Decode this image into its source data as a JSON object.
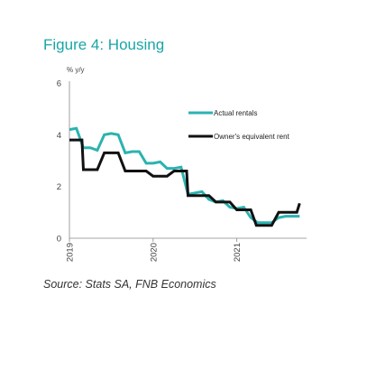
{
  "figure": {
    "title": "Figure 4: Housing",
    "source": "Source:  Stats SA, FNB Economics"
  },
  "chart_data": {
    "type": "line",
    "ylabel": "% y/y",
    "ylim": [
      0,
      6
    ],
    "yticks": [
      0,
      2,
      4,
      6
    ],
    "xlim": [
      0,
      34
    ],
    "xticks": [
      {
        "label": "2019",
        "x": 0
      },
      {
        "label": "2020",
        "x": 12
      },
      {
        "label": "2021",
        "x": 24
      }
    ],
    "grid": false,
    "legend": "upper-right",
    "colors": {
      "actual": "#2bb3b0",
      "owners": "#111111"
    },
    "series": [
      {
        "name": "Actual rentals",
        "color": "#2bb3b0",
        "x": [
          0,
          1,
          2,
          3,
          4,
          5,
          6,
          7,
          8,
          9,
          10,
          11,
          12,
          13,
          14,
          15,
          16,
          17,
          18,
          19,
          20,
          21,
          22,
          23,
          24,
          25,
          26,
          27,
          28,
          29,
          30,
          31,
          32,
          33
        ],
        "values": [
          4.2,
          4.25,
          3.5,
          3.5,
          3.4,
          4.0,
          4.05,
          4.0,
          3.3,
          3.35,
          3.35,
          2.9,
          2.9,
          2.95,
          2.7,
          2.7,
          2.75,
          1.7,
          1.75,
          1.8,
          1.5,
          1.4,
          1.45,
          1.2,
          1.15,
          1.2,
          0.8,
          0.6,
          0.6,
          0.6,
          0.8,
          0.85,
          0.85,
          0.85
        ]
      },
      {
        "name": "Owner's equivalent rent",
        "color": "#111111",
        "x": [
          0,
          1,
          1.8,
          2,
          3,
          3.6,
          4,
          5,
          6,
          6.8,
          7,
          8,
          9,
          10,
          10.8,
          11,
          12,
          13,
          13.8,
          14,
          15,
          16,
          16.8,
          17,
          18,
          18.8,
          19,
          20,
          21,
          21.8,
          22,
          23,
          24,
          24.8,
          25,
          26,
          26.8,
          27,
          28,
          28.8,
          29,
          30,
          31,
          31.8,
          32,
          32.6,
          33
        ],
        "values": [
          3.8,
          3.8,
          3.8,
          2.65,
          2.65,
          2.65,
          2.65,
          3.3,
          3.3,
          3.3,
          3.3,
          2.6,
          2.6,
          2.6,
          2.6,
          2.6,
          2.4,
          2.4,
          2.4,
          2.4,
          2.6,
          2.6,
          2.6,
          1.65,
          1.65,
          1.65,
          1.65,
          1.65,
          1.4,
          1.4,
          1.4,
          1.4,
          1.1,
          1.1,
          1.1,
          1.1,
          0.5,
          0.5,
          0.5,
          0.5,
          0.5,
          1.0,
          1.0,
          1.0,
          1.0,
          1.0,
          1.35
        ]
      }
    ]
  }
}
